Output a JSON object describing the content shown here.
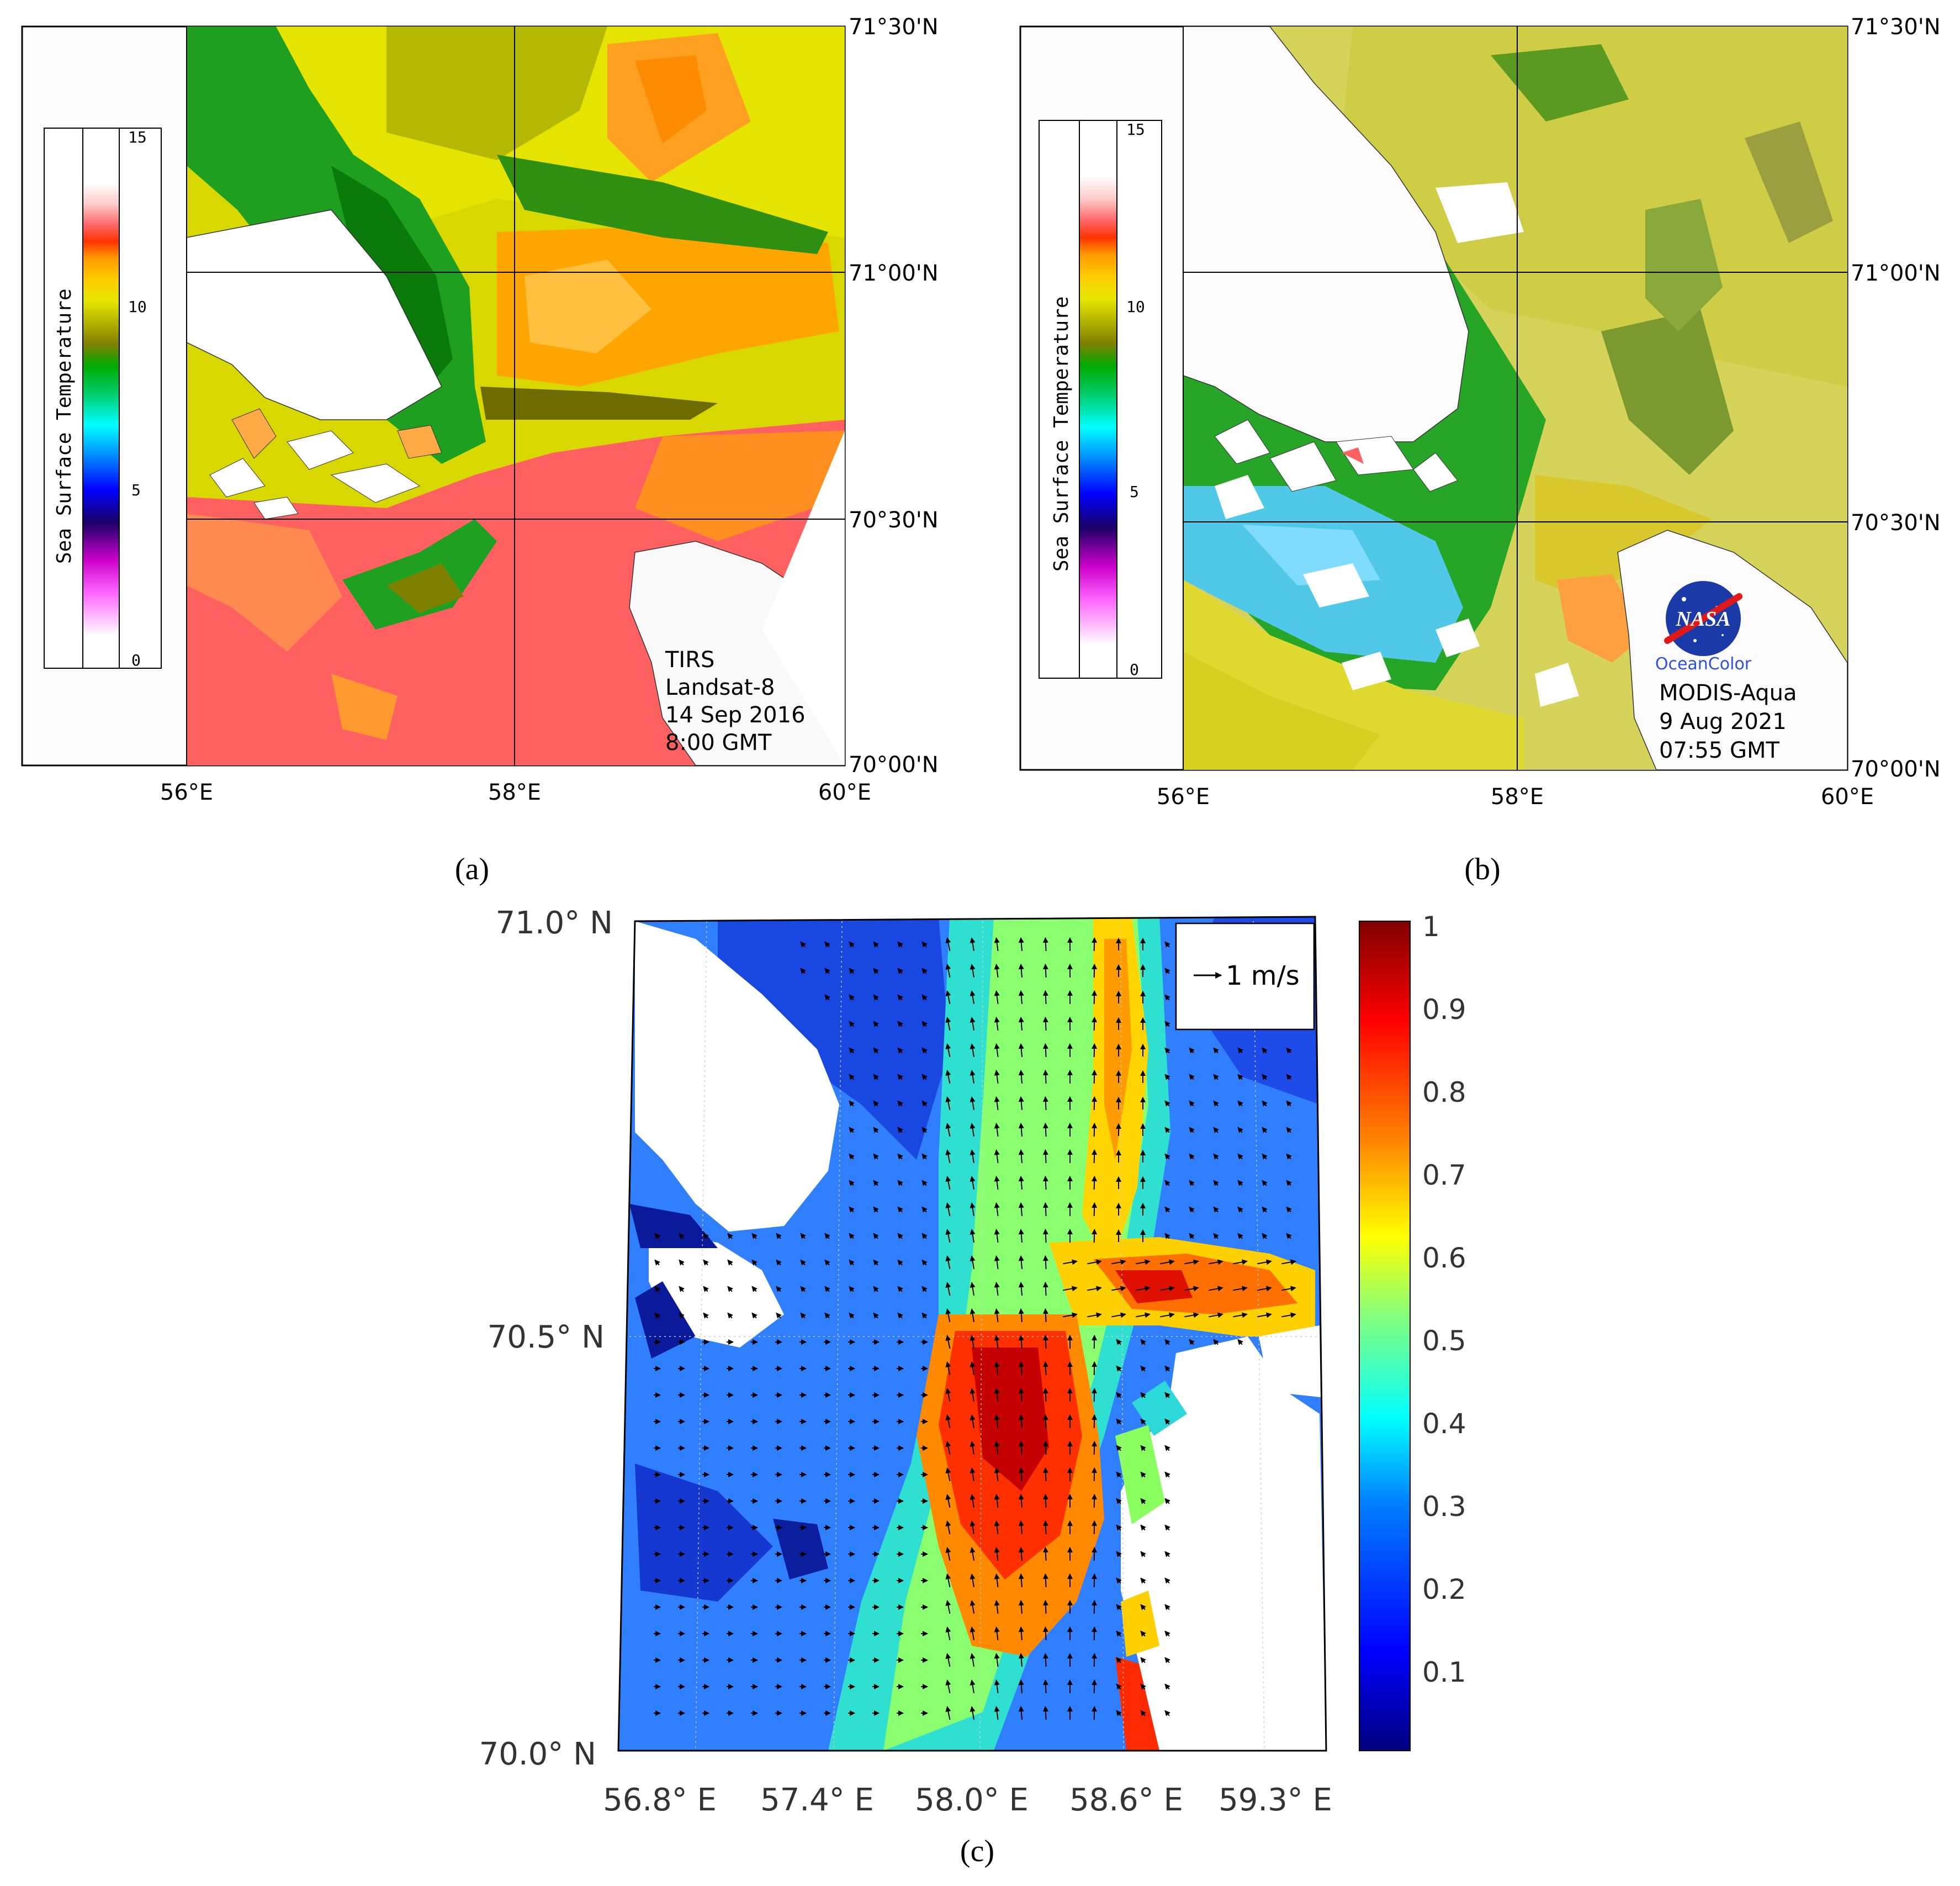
{
  "colors": {
    "sst_scale": [
      "#ffffff",
      "#ff66ff",
      "#cc00cc",
      "#1a0066",
      "#0000ff",
      "#0099ff",
      "#00ffff",
      "#00cc66",
      "#00aa00",
      "#808000",
      "#b3b300",
      "#e6e600",
      "#ffcc00",
      "#ff9900",
      "#ff3300",
      "#ff6666",
      "#ffcccc",
      "#ffffff"
    ],
    "speed_scale": [
      "#00007f",
      "#0000ff",
      "#0080ff",
      "#00ffff",
      "#80ff80",
      "#ffff00",
      "#ff8000",
      "#ff0000",
      "#800000"
    ]
  },
  "panel_a": {
    "caption": "(a)",
    "colorbar_title": "Sea Surface Temperature",
    "colorbar_ticks": [
      "15",
      "10",
      "5",
      "0"
    ],
    "lat_labels": [
      "71°30'N",
      "71°00'N",
      "70°30'N",
      "70°00'N"
    ],
    "lon_labels": [
      "56°E",
      "58°E",
      "60°E"
    ],
    "annotation": [
      "TIRS",
      "Landsat-8",
      "14 Sep 2016",
      "8:00 GMT"
    ]
  },
  "panel_b": {
    "caption": "(b)",
    "colorbar_title": "Sea Surface Temperature",
    "colorbar_ticks": [
      "15",
      "10",
      "5",
      "0"
    ],
    "lat_labels": [
      "71°30'N",
      "71°00'N",
      "70°30'N",
      "70°00'N"
    ],
    "lon_labels": [
      "56°E",
      "58°E",
      "60°E"
    ],
    "logo_text": "NASA",
    "logo_subtext": "OceanColor",
    "annotation": [
      "MODIS-Aqua",
      "9 Aug 2021",
      "07:55 GMT"
    ]
  },
  "panel_c": {
    "caption": "(c)",
    "legend_label": "1 m/s",
    "lat_labels": [
      "71.0° N",
      "70.5° N",
      "70.0° N"
    ],
    "lon_labels": [
      "56.8° E",
      "57.4° E",
      "58.0° E",
      "58.6° E",
      "59.3° E"
    ],
    "colorbar_ticks": [
      "1",
      "0.9",
      "0.8",
      "0.7",
      "0.6",
      "0.5",
      "0.4",
      "0.3",
      "0.2",
      "0.1"
    ]
  }
}
